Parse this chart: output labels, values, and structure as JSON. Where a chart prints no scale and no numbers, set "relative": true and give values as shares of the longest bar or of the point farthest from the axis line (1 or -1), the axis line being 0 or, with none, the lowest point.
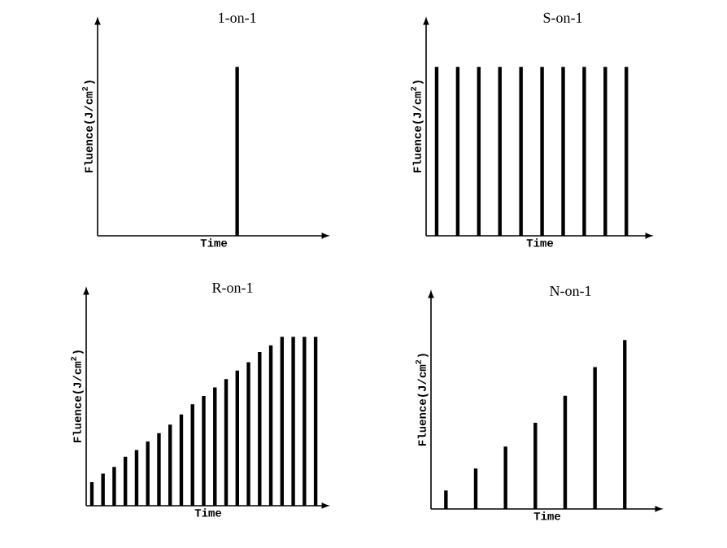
{
  "chart_data": [
    {
      "type": "bar",
      "title": "1-on-1",
      "xlabel": "Time",
      "ylabel": "Fluence(J/cm$^{2}$)",
      "relative": true,
      "color": "#000000",
      "categories": [
        null
      ],
      "values": [
        1
      ]
    },
    {
      "type": "bar",
      "title": "S-on-1",
      "xlabel": "Time",
      "ylabel": "Fluence(J/cm$^{2}$)",
      "relative": true,
      "color": "#000000",
      "categories": [
        null,
        null,
        null,
        null,
        null,
        null,
        null,
        null,
        null,
        null
      ],
      "values": [
        1,
        1,
        1,
        1,
        1,
        1,
        1,
        1,
        1,
        1
      ]
    },
    {
      "type": "bar",
      "title": "R-on-1",
      "xlabel": "Time",
      "ylabel": "Fluence(J/cm$^{2}$)",
      "relative": true,
      "color": "#000000",
      "categories": [
        null,
        null,
        null,
        null,
        null,
        null,
        null,
        null,
        null,
        null,
        null,
        null,
        null,
        null,
        null,
        null,
        null,
        null,
        null,
        null,
        null
      ],
      "values": [
        0.14,
        0.19,
        0.23,
        0.29,
        0.33,
        0.38,
        0.43,
        0.48,
        0.54,
        0.6,
        0.65,
        0.7,
        0.75,
        0.8,
        0.85,
        0.91,
        0.95,
        1,
        1,
        1,
        1
      ]
    },
    {
      "type": "bar",
      "title": "N-on-1",
      "xlabel": "Time",
      "ylabel": "Fluence(J/cm$^{2}$)",
      "relative": true,
      "color": "#000000",
      "categories": [
        null,
        null,
        null,
        null,
        null,
        null,
        null
      ],
      "values": [
        0.11,
        0.24,
        0.37,
        0.51,
        0.67,
        0.84,
        1
      ]
    }
  ]
}
